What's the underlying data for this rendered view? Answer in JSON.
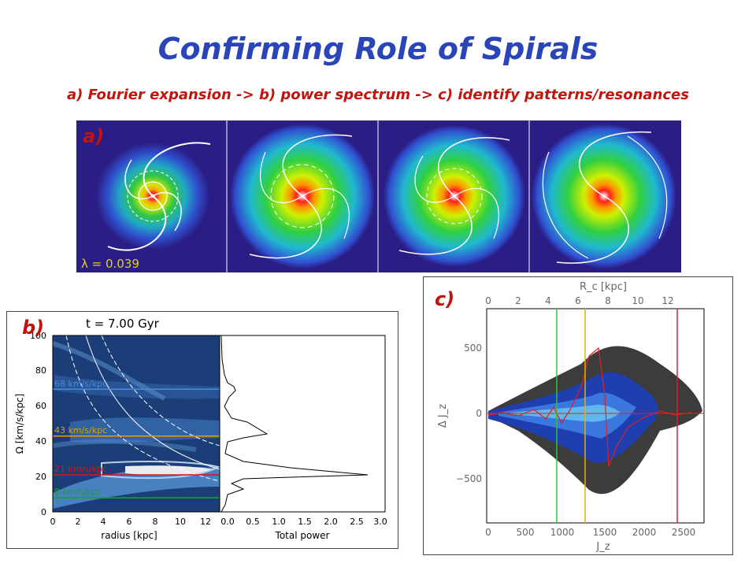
{
  "slide": {
    "title": "Confirming Role of Spirals",
    "subtitle": "a) Fourier expansion -> b) power spectrum -> c) identify patterns/resonances"
  },
  "panel_a": {
    "label": "a)",
    "lambda_text": "λ = 0.039",
    "colors": {
      "background": "#2a1e86",
      "contour": "#ffffff"
    }
  },
  "panel_b": {
    "label": "b)",
    "time_text": "t =  7.00 Gyr",
    "y_axis_label": "Ω [km/s/kpc]",
    "x_axis_left_label": "radius [kpc]",
    "x_axis_right_label": "Total power",
    "y_ticks": [
      "0",
      "20",
      "40",
      "60",
      "80",
      "100"
    ],
    "x_ticks_left": [
      "0",
      "2",
      "4",
      "6",
      "8",
      "10",
      "12"
    ],
    "x_ticks_right": [
      "0.0",
      "0.5",
      "1.0",
      "1.5",
      "2.0",
      "2.5",
      "3.0"
    ],
    "patterns": [
      {
        "text": "68 km/s/kpc",
        "color": "#4a8bd6",
        "omega": 68
      },
      {
        "text": "43 km/s/kpc",
        "color": "#e0a000",
        "omega": 43
      },
      {
        "text": "21 km/s/kpc",
        "color": "#d01818",
        "omega": 21
      },
      {
        "text": "8 km/s/kpc",
        "color": "#18a030",
        "omega": 8
      }
    ]
  },
  "panel_c": {
    "label": "c)",
    "top_axis_label": "R_c [kpc]",
    "bottom_axis_label": "J_z",
    "y_axis_label": "Δ J_z",
    "top_ticks": [
      "0",
      "2",
      "4",
      "6",
      "8",
      "10",
      "12"
    ],
    "bottom_ticks": [
      "0",
      "500",
      "1000",
      "1500",
      "2000",
      "2500"
    ],
    "y_ticks": [
      "500",
      "0",
      "−500"
    ],
    "resonance_lines": [
      {
        "jz": 920,
        "color": "#30c040"
      },
      {
        "jz": 1320,
        "color": "#e0b000"
      },
      {
        "jz": 2470,
        "color": "#e02020"
      }
    ]
  }
}
